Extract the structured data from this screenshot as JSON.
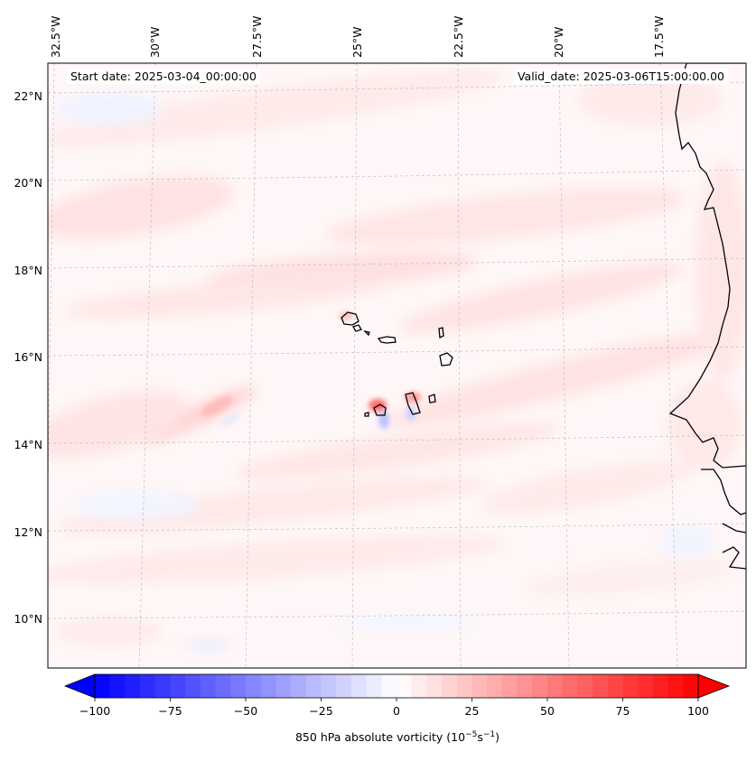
{
  "map": {
    "start_label": "Start date: 2025-03-04_00:00:00",
    "valid_label": "Valid_date: 2025-03-06T15:00:00.00",
    "lon_labels": [
      "32.5°W",
      "30°W",
      "27.5°W",
      "25°W",
      "22.5°W",
      "20°W",
      "17.5°W"
    ],
    "lat_labels": [
      "22°N",
      "20°N",
      "18°N",
      "16°N",
      "14°N",
      "12°N",
      "10°N"
    ],
    "colors": {
      "neg": "#0000ff",
      "pos": "#ff0000",
      "coast": "#000000",
      "grid": "#bfbfbf"
    }
  },
  "colorbar": {
    "label_main": "850 hPa absolute vorticity (10",
    "label_exp1": "−5",
    "label_mid": "s",
    "label_exp2": "−1",
    "label_end": ")",
    "ticks": [
      "−100",
      "−75",
      "−50",
      "−25",
      "0",
      "25",
      "50",
      "75",
      "100"
    ],
    "min": -100,
    "max": 100
  }
}
